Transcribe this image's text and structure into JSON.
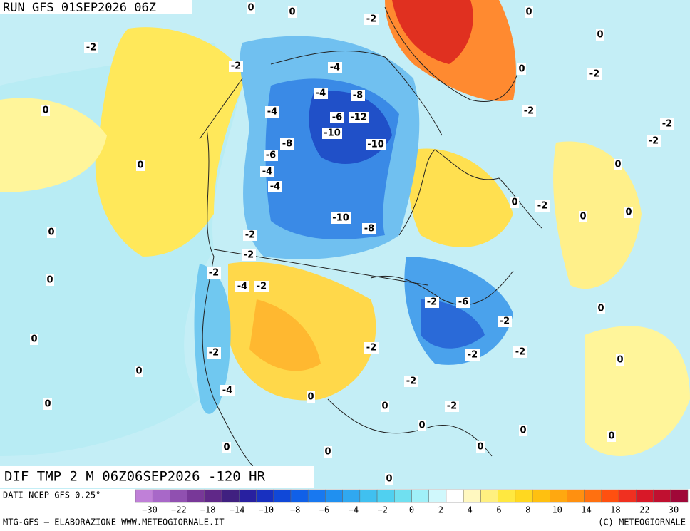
{
  "header": {
    "run": "RUN GFS 01SEP2026 06Z"
  },
  "map": {
    "caption": "DIF TMP 2 M 06Z06SEP2026 -120 HR",
    "labels": [
      "0",
      "-2",
      "0",
      "0",
      "0",
      "0",
      "0",
      "0",
      "0",
      "-2",
      "-4",
      "-4",
      "-8",
      "-4",
      "-10",
      "-6",
      "-12",
      "-10",
      "-8",
      "-6",
      "-4",
      "-4",
      "-10",
      "-8",
      "-2",
      "-2",
      "-2",
      "-4",
      "-2",
      "-2",
      "-6",
      "-2",
      "-2",
      "-2",
      "-2",
      "-2",
      "-2",
      "-2",
      "-4",
      "0",
      "0",
      "0",
      "0",
      "0",
      "0",
      "0",
      "-2",
      "-2",
      "-2",
      "-2",
      "0",
      "0",
      "0",
      "0",
      "0",
      "-2",
      "0",
      "0",
      "0",
      "-2",
      "0",
      "0",
      "0",
      "0"
    ]
  },
  "colorbar": {
    "source": "DATI NCEP GFS 0.25°",
    "colors": [
      "#c080d8",
      "#a868c8",
      "#9050b0",
      "#783898",
      "#602888",
      "#402080",
      "#2820a0",
      "#1830c0",
      "#1048d8",
      "#1060e8",
      "#1878f0",
      "#2090f0",
      "#30a8f0",
      "#40c0f0",
      "#50d0f0",
      "#70e0f0",
      "#a0f0f8",
      "#d0f8fc",
      "#ffffff",
      "#fff8c0",
      "#fff080",
      "#ffe840",
      "#ffd820",
      "#ffc010",
      "#ffa810",
      "#ff9010",
      "#ff7010",
      "#ff5010",
      "#f03020",
      "#d81828",
      "#c01030",
      "#a00838"
    ],
    "labels": [
      "−30",
      "−22",
      "−18",
      "−14",
      "−10",
      "−8",
      "−6",
      "−4",
      "−2",
      "0",
      "2",
      "4",
      "6",
      "8",
      "10",
      "14",
      "18",
      "22",
      "30"
    ]
  },
  "footer": {
    "left": "MTG-GFS — ELABORAZIONE WWW.METEOGIORNALE.IT",
    "right": "(C) METEOGIORNALE"
  }
}
